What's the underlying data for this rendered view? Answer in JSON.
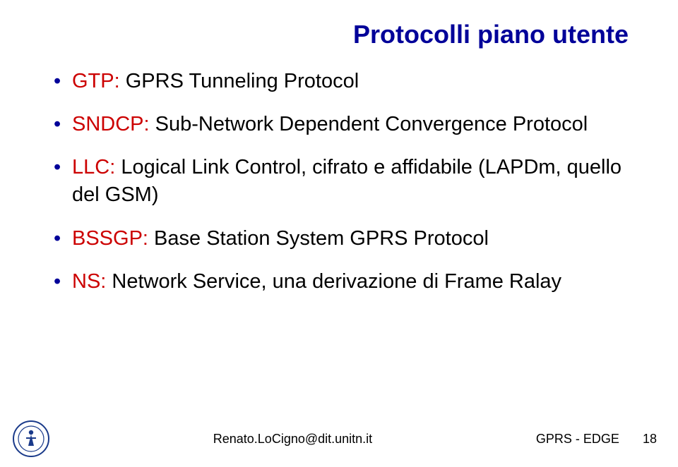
{
  "colors": {
    "title": "#000099",
    "bullet_marker": "#000099",
    "abbrev": "#cc0000",
    "body_text": "#000000",
    "footer_text": "#000000",
    "background": "#ffffff",
    "logo_ring": "#1a3a8a",
    "logo_inner": "#ffffff",
    "logo_figure": "#1a3a8a"
  },
  "title": "Protocolli piano utente",
  "bullets": [
    {
      "abbrev": "GTP:",
      "rest": " GPRS Tunneling Protocol"
    },
    {
      "abbrev": "SNDCP:",
      "rest": " Sub-Network Dependent Convergence Protocol"
    },
    {
      "abbrev": "LLC:",
      "rest": " Logical Link Control, cifrato e affidabile (LAPDm, quello del GSM)"
    },
    {
      "abbrev": "BSSGP:",
      "rest": " Base Station System GPRS Protocol"
    },
    {
      "abbrev": "NS:",
      "rest": " Network Service, una derivazione di Frame Ralay"
    }
  ],
  "footer": {
    "center": "Renato.LoCigno@dit.unitn.it",
    "right_label": "GPRS - EDGE",
    "page_number": "18"
  }
}
